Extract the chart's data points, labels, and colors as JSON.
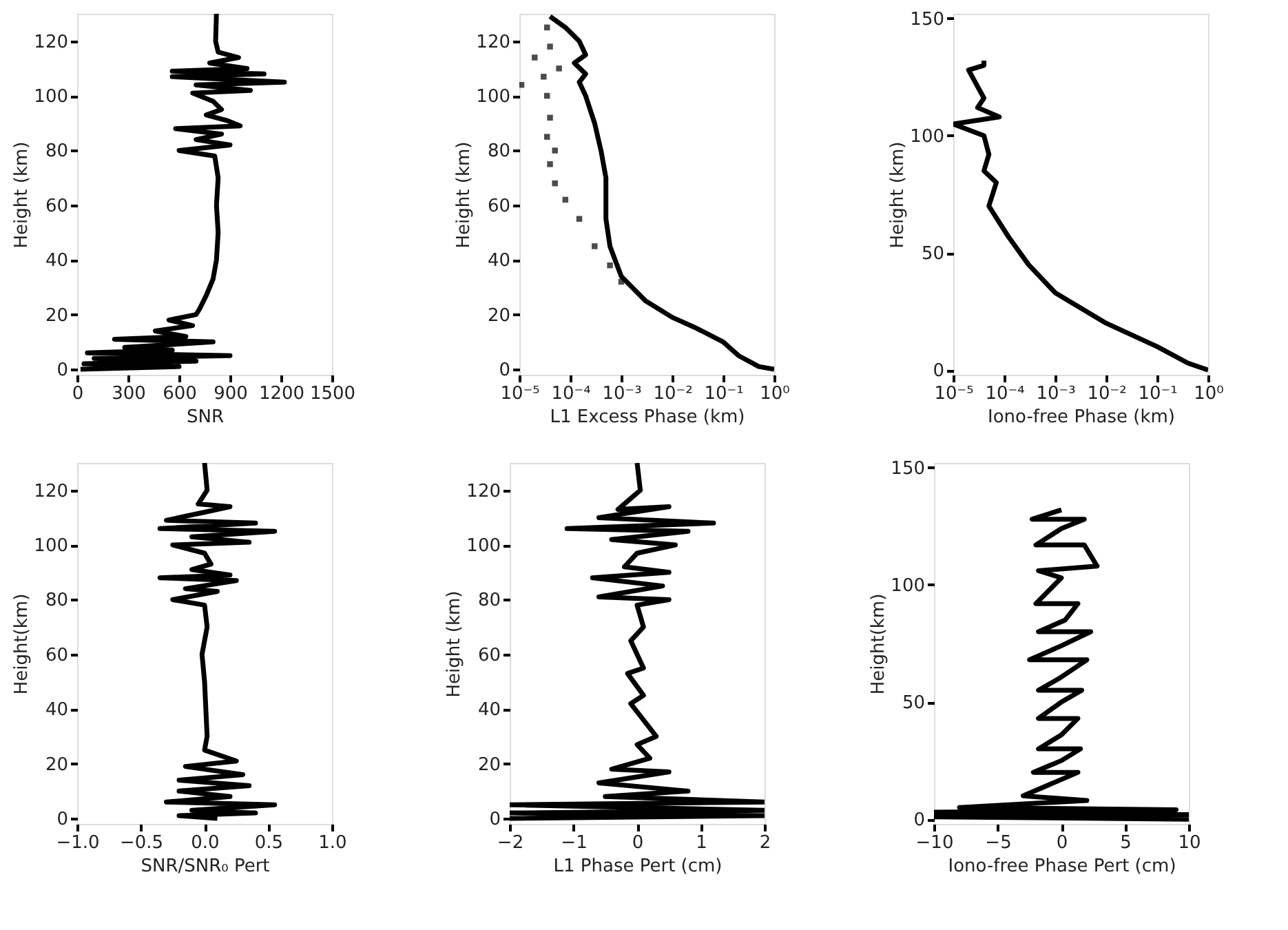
{
  "chart_data": [
    {
      "type": "line",
      "xlabel": "SNR",
      "ylabel": "Height (km)",
      "xlim": [
        0,
        1500
      ],
      "xticks": [
        0,
        300,
        600,
        900,
        1200,
        1500
      ],
      "ylim": [
        -2,
        130
      ],
      "yticks": [
        0,
        20,
        40,
        60,
        80,
        100,
        120
      ],
      "grid": false,
      "series": [
        {
          "color": "#000000",
          "x": [
            820,
            815,
            830,
            950,
            780,
            1000,
            560,
            1100,
            560,
            1220,
            700,
            1020,
            680,
            800,
            850,
            760,
            880,
            960,
            580,
            850,
            700,
            900,
            600,
            810,
            830,
            820,
            830,
            820,
            800,
            760,
            720,
            700,
            540,
            680,
            460,
            640,
            220,
            800,
            280,
            560,
            60,
            900,
            100,
            700,
            40,
            600,
            20
          ],
          "values": [
            130,
            120,
            116,
            114,
            112,
            110,
            109,
            108,
            107,
            105,
            104,
            102,
            101,
            98,
            95,
            93,
            91,
            89,
            88,
            86,
            84,
            82,
            80,
            78,
            70,
            60,
            50,
            40,
            33,
            27,
            22,
            20,
            18,
            16,
            14,
            12,
            11,
            10,
            8,
            7,
            6,
            5,
            4,
            3,
            2,
            1,
            0
          ]
        }
      ]
    },
    {
      "type": "line",
      "xlabel": "L1 Excess Phase (km)",
      "ylabel": "Height (km)",
      "log": "x",
      "xlim": [
        1e-05,
        1
      ],
      "xticks": [
        {
          "value": 1e-05,
          "label": "10⁻⁵"
        },
        {
          "value": 0.0001,
          "label": "10⁻⁴"
        },
        {
          "value": 0.001,
          "label": "10⁻³"
        },
        {
          "value": 0.01,
          "label": "10⁻²"
        },
        {
          "value": 0.1,
          "label": "10⁻¹"
        },
        {
          "value": 1,
          "label": "10⁰"
        }
      ],
      "ylim": [
        -2,
        130
      ],
      "yticks": [
        0,
        20,
        40,
        60,
        80,
        100,
        120
      ],
      "grid": false,
      "series": [
        {
          "color": "#000000",
          "x": [
            1,
            0.5,
            0.2,
            0.1,
            0.03,
            0.01,
            0.003,
            0.001,
            0.0006,
            0.0005,
            0.0005,
            0.0004,
            0.0003,
            0.0002,
            0.00015,
            0.0002,
            0.00012,
            0.0002,
            0.00015,
            8e-05,
            4e-05
          ],
          "values": [
            0,
            1,
            5,
            10,
            15,
            19,
            25,
            34,
            45,
            55,
            70,
            80,
            90,
            100,
            105,
            108,
            112,
            115,
            120,
            125,
            129
          ]
        },
        {
          "type": "scatter",
          "marker": "square",
          "color": "#000000",
          "x": [
            0.001,
            0.0006,
            0.0003,
            0.00015,
            8e-05,
            5e-05,
            4e-05,
            5e-05,
            3.5e-05,
            4e-05,
            3.5e-05,
            1.1e-05,
            3e-05,
            6e-05,
            2e-05,
            4e-05,
            3.5e-05
          ],
          "values": [
            32,
            38,
            45,
            55,
            62,
            68,
            75,
            80,
            85,
            92,
            100,
            104,
            107,
            110,
            114,
            118,
            125
          ]
        }
      ]
    },
    {
      "type": "line",
      "xlabel": "Iono-free Phase (km)",
      "ylabel": "Height (km)",
      "log": "x",
      "xlim": [
        1e-05,
        1
      ],
      "xticks": [
        {
          "value": 1e-05,
          "label": "10⁻⁵"
        },
        {
          "value": 0.0001,
          "label": "10⁻⁴"
        },
        {
          "value": 0.001,
          "label": "10⁻³"
        },
        {
          "value": 0.01,
          "label": "10⁻²"
        },
        {
          "value": 0.1,
          "label": "10⁻¹"
        },
        {
          "value": 1,
          "label": "10⁰"
        }
      ],
      "ylim": [
        -2,
        152
      ],
      "yticks": [
        0,
        50,
        100,
        150
      ],
      "grid": false,
      "series": [
        {
          "color": "#000000",
          "x": [
            1,
            0.4,
            0.1,
            0.01,
            0.001,
            0.0003,
            0.00012,
            7e-05,
            5e-05,
            7e-05,
            4e-05,
            5e-05,
            4e-05,
            1e-05,
            8e-05,
            3e-05,
            4e-05,
            2e-05,
            4e-05,
            4e-05
          ],
          "values": [
            0,
            3,
            10,
            20,
            33,
            45,
            57,
            65,
            70,
            80,
            85,
            92,
            100,
            105,
            108,
            112,
            116,
            128,
            130,
            132
          ]
        }
      ]
    },
    {
      "type": "line",
      "xlabel": "SNR/SNR₀ Pert",
      "ylabel": "Height(km)",
      "xlim": [
        -1,
        1
      ],
      "xticks": [
        {
          "value": -1,
          "label": "−1.0"
        },
        {
          "value": -0.5,
          "label": "−0.5"
        },
        {
          "value": 0,
          "label": "0.0"
        },
        {
          "value": 0.5,
          "label": "0.5"
        },
        {
          "value": 1,
          "label": "1.0"
        }
      ],
      "ylim": [
        -2,
        130
      ],
      "yticks": [
        0,
        20,
        40,
        60,
        80,
        100,
        120
      ],
      "grid": false,
      "series": [
        {
          "color": "#000000",
          "x": [
            0,
            0.02,
            -0.05,
            0.2,
            0,
            -0.3,
            0.4,
            -0.35,
            0.55,
            -0.1,
            0.35,
            -0.25,
            0,
            0.05,
            -0.1,
            0.2,
            -0.35,
            0.25,
            -0.15,
            0.1,
            -0.25,
            0,
            0.02,
            -0.02,
            0,
            0.01,
            0.02,
            0,
            0.25,
            -0.15,
            0.3,
            -0.2,
            0.35,
            -0.2,
            0.2,
            -0.3,
            0.55,
            -0.1,
            0.4,
            -0.2,
            0.1
          ],
          "values": [
            130,
            120,
            115,
            114,
            112,
            109,
            108,
            106,
            105,
            103,
            101,
            100,
            97,
            93,
            91,
            89,
            88,
            87,
            84,
            83,
            80,
            78,
            70,
            60,
            50,
            40,
            30,
            25,
            21,
            19,
            16,
            14,
            12,
            10,
            8,
            6,
            5,
            3,
            2,
            1,
            0
          ]
        }
      ]
    },
    {
      "type": "line",
      "xlabel": "L1 Phase Pert (cm)",
      "ylabel": "Height (km)",
      "xlim": [
        -2,
        2
      ],
      "xticks": [
        {
          "value": -2,
          "label": "−2"
        },
        {
          "value": -1,
          "label": "−1"
        },
        0,
        1,
        2
      ],
      "ylim": [
        -2,
        130
      ],
      "yticks": [
        0,
        20,
        40,
        60,
        80,
        100,
        120
      ],
      "grid": false,
      "series": [
        {
          "color": "#000000",
          "x": [
            0,
            0.05,
            -0.3,
            0.5,
            -0.6,
            1.2,
            -1.1,
            0.8,
            -0.4,
            0.6,
            0,
            -0.2,
            0.5,
            -0.7,
            0.4,
            -0.6,
            0.5,
            0,
            0.1,
            -0.1,
            0.1,
            -0.15,
            0.1,
            -0.1,
            0.3,
            0,
            0.2,
            -0.4,
            0.5,
            -0.6,
            0.8,
            -0.5,
            2,
            -2,
            2,
            -2,
            2,
            -2
          ],
          "values": [
            130,
            120,
            113,
            114,
            110,
            108,
            106,
            105,
            102,
            100,
            97,
            92,
            90,
            88,
            85,
            81,
            80,
            78,
            70,
            65,
            55,
            53,
            45,
            42,
            30,
            27,
            22,
            18,
            17,
            13,
            10,
            8,
            6,
            5,
            3,
            2,
            1,
            0
          ]
        }
      ]
    },
    {
      "type": "line",
      "xlabel": "Iono-free Phase Pert (cm)",
      "ylabel": "Height(km)",
      "xlim": [
        -10,
        10
      ],
      "xticks": [
        {
          "value": -10,
          "label": "−10"
        },
        {
          "value": -5,
          "label": "−5"
        },
        0,
        5,
        10
      ],
      "ylim": [
        -2,
        152
      ],
      "yticks": [
        0,
        50,
        100,
        150
      ],
      "grid": false,
      "series": [
        {
          "color": "#000000",
          "x": [
            0,
            -2.3,
            1.8,
            0,
            -2,
            1.8,
            2.8,
            -1.8,
            0,
            -2,
            1.3,
            0.3,
            -1.8,
            2.3,
            0,
            -2.5,
            2,
            -0.2,
            -1.8,
            1.6,
            0,
            -1.8,
            1.3,
            0,
            -1.8,
            1.5,
            0,
            -2.2,
            1.3,
            -3,
            2,
            -8,
            9,
            -10,
            10,
            -10,
            10
          ],
          "values": [
            132,
            128,
            128,
            124,
            117,
            117,
            108,
            106,
            103,
            92,
            92,
            85,
            80,
            80,
            74,
            68,
            68,
            60,
            55,
            55,
            50,
            43,
            43,
            36,
            30,
            30,
            25,
            20,
            20,
            10,
            8,
            5,
            4,
            3,
            2,
            1,
            0
          ]
        }
      ]
    }
  ]
}
